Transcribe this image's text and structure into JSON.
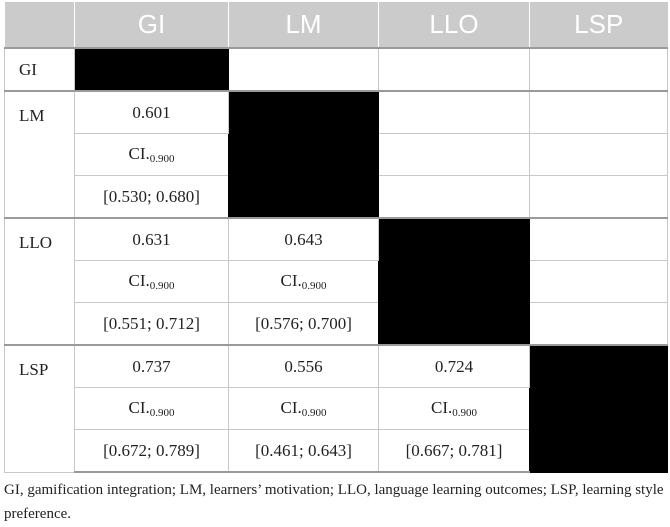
{
  "headers": [
    "",
    "GI",
    "LM",
    "LLO",
    "LSP"
  ],
  "rows": [
    {
      "label": "GI",
      "cells": []
    },
    {
      "label": "LM",
      "cells": [
        {
          "value": "0.601",
          "ci_prefix": "CI.",
          "ci_sub": "0.900",
          "interval": "[0.530; 0.680]"
        }
      ]
    },
    {
      "label": "LLO",
      "cells": [
        {
          "value": "0.631",
          "ci_prefix": "CI.",
          "ci_sub": "0.900",
          "interval": "[0.551; 0.712]"
        },
        {
          "value": "0.643",
          "ci_prefix": "CI.",
          "ci_sub": "0.900",
          "interval": "[0.576; 0.700]"
        }
      ]
    },
    {
      "label": "LSP",
      "cells": [
        {
          "value": "0.737",
          "ci_prefix": "CI.",
          "ci_sub": "0.900",
          "interval": "[0.672; 0.789]"
        },
        {
          "value": "0.556",
          "ci_prefix": "CI.",
          "ci_sub": "0.900",
          "interval": "[0.461; 0.643]"
        },
        {
          "value": "0.724",
          "ci_prefix": "CI.",
          "ci_sub": "0.900",
          "interval": "[0.667; 0.781]"
        }
      ]
    }
  ],
  "footnote": "GI, gamification integration; LM, learners’ motivation; LLO, language learning outcomes; LSP, learning style preference."
}
